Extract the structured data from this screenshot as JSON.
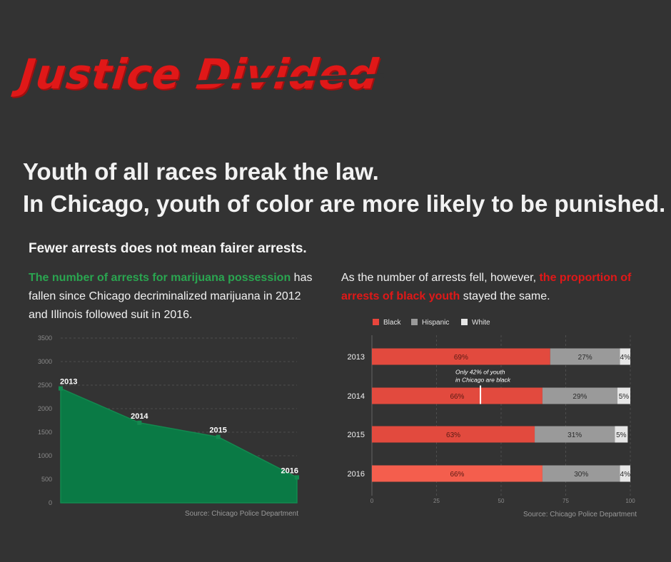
{
  "header": {
    "title_part1": "Justice",
    "title_part2": "Divided",
    "headline_line1": "Youth of all races break the law.",
    "headline_line2": "In Chicago, youth of color are more likely to be punished.",
    "subhead": "Fewer arrests does not mean fairer arrests."
  },
  "left_text": {
    "highlight": "The number of arrests for marijuana possession",
    "rest": " has fallen since Chicago decriminalized marijuana in 2012 and Illinois followed suit in 2016."
  },
  "right_text": {
    "start": "As the number of arrests fell, however, ",
    "highlight": "the proportion of arrests of black youth",
    "end": " stayed the same."
  },
  "colors": {
    "title": "#e01818",
    "area": "#0a7a45",
    "black": "#e8453c",
    "hispanic": "#9a9a9a",
    "white": "#e6e6e6",
    "highlight_green": "#2aa550"
  },
  "chart_data": [
    {
      "type": "area",
      "x": [
        "2013",
        "2014",
        "2015",
        "2016"
      ],
      "values": [
        2430,
        1700,
        1400,
        540
      ],
      "point_labels": [
        "2013",
        "2014",
        "2015",
        "2016"
      ],
      "ylim": [
        0,
        3500
      ],
      "yticks": [
        "0",
        "500",
        "1000",
        "1500",
        "2000",
        "2500",
        "3000",
        "3500"
      ],
      "grid": true,
      "source": "Source: Chicago Police Department"
    },
    {
      "type": "bar",
      "orientation": "horizontal-stacked",
      "categories": [
        "2013",
        "2014",
        "2015",
        "2016"
      ],
      "series": [
        {
          "name": "Black",
          "values": [
            69,
            66,
            63,
            66
          ],
          "labels": [
            "69%",
            "66%",
            "63%",
            "66%"
          ]
        },
        {
          "name": "Hispanic",
          "values": [
            27,
            29,
            31,
            30
          ],
          "labels": [
            "27%",
            "29%",
            "31%",
            "30%"
          ]
        },
        {
          "name": "White",
          "values": [
            4,
            5,
            5,
            4
          ],
          "labels": [
            "4%",
            "5%",
            "5%",
            "4%"
          ]
        }
      ],
      "xlim": [
        0,
        100
      ],
      "xticks": [
        "0",
        "25",
        "50",
        "75",
        "100"
      ],
      "legend_position": "top-left",
      "annotation": {
        "line1": "Only 42% of youth",
        "line2": "in Chicago are black",
        "category": "2014",
        "value": 42
      },
      "source": "Source: Chicago Police Department"
    }
  ]
}
